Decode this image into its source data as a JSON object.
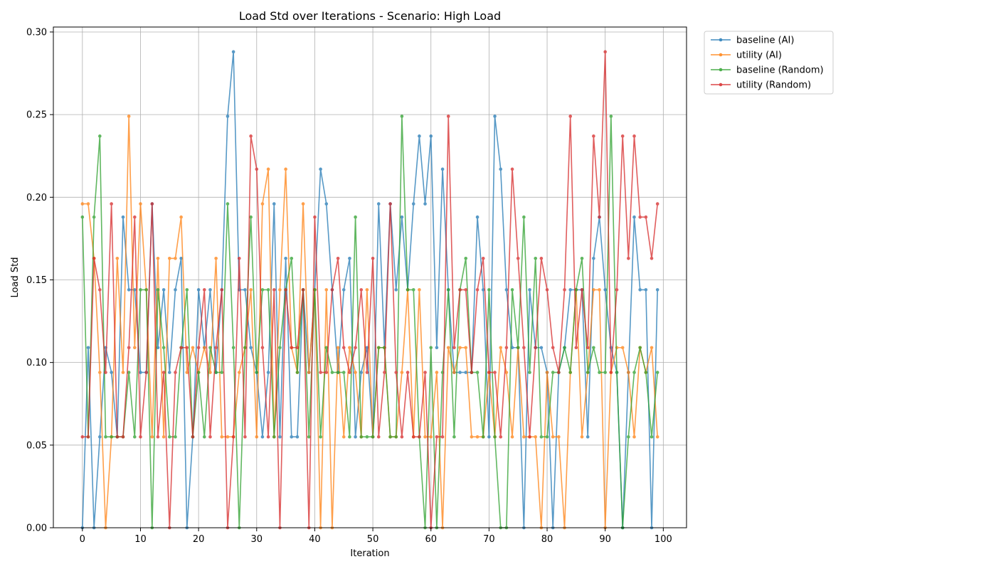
{
  "chart_data": {
    "type": "line",
    "title": "Load Std over Iterations - Scenario: High Load",
    "xlabel": "Iteration",
    "ylabel": "Load Std",
    "xlim": [
      -5,
      104
    ],
    "ylim": [
      0,
      0.303
    ],
    "xticks": [
      0,
      10,
      20,
      30,
      40,
      50,
      60,
      70,
      80,
      90,
      100
    ],
    "yticks": [
      0.0,
      0.05,
      0.1,
      0.15,
      0.2,
      0.25,
      0.3
    ],
    "xtick_labels": [
      "0",
      "10",
      "20",
      "30",
      "40",
      "50",
      "60",
      "70",
      "80",
      "90",
      "100"
    ],
    "ytick_labels": [
      "0.00",
      "0.05",
      "0.10",
      "0.15",
      "0.20",
      "0.25",
      "0.30"
    ],
    "grid": true,
    "legend_position": "outside-top-right",
    "series": [
      {
        "name": "baseline (AI)",
        "color": "#1f77b4",
        "values": [
          0.0,
          0.109,
          0.0,
          0.055,
          0.109,
          0.094,
          0.055,
          0.188,
          0.144,
          0.144,
          0.094,
          0.094,
          0.196,
          0.109,
          0.144,
          0.094,
          0.144,
          0.163,
          0.0,
          0.055,
          0.144,
          0.109,
          0.144,
          0.094,
          0.144,
          0.249,
          0.288,
          0.144,
          0.144,
          0.109,
          0.094,
          0.055,
          0.094,
          0.196,
          0.055,
          0.163,
          0.055,
          0.055,
          0.144,
          0.094,
          0.144,
          0.217,
          0.196,
          0.144,
          0.094,
          0.144,
          0.163,
          0.055,
          0.094,
          0.109,
          0.055,
          0.196,
          0.109,
          0.196,
          0.144,
          0.188,
          0.144,
          0.196,
          0.237,
          0.196,
          0.237,
          0.109,
          0.217,
          0.144,
          0.094,
          0.094,
          0.094,
          0.094,
          0.188,
          0.144,
          0.055,
          0.249,
          0.217,
          0.144,
          0.109,
          0.109,
          0.0,
          0.144,
          0.109,
          0.109,
          0.094,
          0.0,
          0.094,
          0.109,
          0.144,
          0.144,
          0.144,
          0.055,
          0.163,
          0.188,
          0.144,
          0.109,
          0.094,
          0.0,
          0.094,
          0.188,
          0.144,
          0.144,
          0.0,
          0.144
        ]
      },
      {
        "name": "utility (AI)",
        "color": "#ff7f0e",
        "values": [
          0.196,
          0.196,
          0.163,
          0.094,
          0.0,
          0.055,
          0.163,
          0.094,
          0.249,
          0.109,
          0.196,
          0.144,
          0.055,
          0.163,
          0.055,
          0.163,
          0.163,
          0.188,
          0.094,
          0.109,
          0.094,
          0.109,
          0.094,
          0.163,
          0.055,
          0.055,
          0.055,
          0.094,
          0.109,
          0.144,
          0.055,
          0.196,
          0.217,
          0.055,
          0.144,
          0.217,
          0.109,
          0.094,
          0.196,
          0.094,
          0.144,
          0.0,
          0.144,
          0.0,
          0.109,
          0.055,
          0.109,
          0.094,
          0.055,
          0.144,
          0.055,
          0.109,
          0.109,
          0.055,
          0.055,
          0.094,
          0.144,
          0.055,
          0.144,
          0.055,
          0.055,
          0.094,
          0.0,
          0.109,
          0.094,
          0.109,
          0.109,
          0.055,
          0.055,
          0.055,
          0.094,
          0.055,
          0.109,
          0.094,
          0.055,
          0.109,
          0.055,
          0.055,
          0.055,
          0.0,
          0.094,
          0.055,
          0.055,
          0.0,
          0.094,
          0.144,
          0.055,
          0.094,
          0.144,
          0.144,
          0.0,
          0.094,
          0.109,
          0.109,
          0.094,
          0.055,
          0.109,
          0.094,
          0.109,
          0.055
        ]
      },
      {
        "name": "baseline (Random)",
        "color": "#2ca02c",
        "values": [
          0.188,
          0.055,
          0.188,
          0.237,
          0.055,
          0.055,
          0.055,
          0.055,
          0.094,
          0.055,
          0.144,
          0.144,
          0.0,
          0.144,
          0.109,
          0.055,
          0.055,
          0.109,
          0.144,
          0.055,
          0.094,
          0.055,
          0.109,
          0.094,
          0.094,
          0.196,
          0.109,
          0.0,
          0.109,
          0.188,
          0.094,
          0.144,
          0.144,
          0.055,
          0.109,
          0.144,
          0.163,
          0.094,
          0.144,
          0.055,
          0.144,
          0.055,
          0.109,
          0.094,
          0.094,
          0.094,
          0.055,
          0.188,
          0.055,
          0.055,
          0.055,
          0.109,
          0.109,
          0.055,
          0.055,
          0.249,
          0.144,
          0.144,
          0.055,
          0.0,
          0.109,
          0.0,
          0.094,
          0.144,
          0.055,
          0.144,
          0.163,
          0.094,
          0.094,
          0.055,
          0.144,
          0.055,
          0.0,
          0.0,
          0.144,
          0.109,
          0.188,
          0.094,
          0.163,
          0.055,
          0.055,
          0.094,
          0.094,
          0.109,
          0.094,
          0.144,
          0.163,
          0.094,
          0.109,
          0.094,
          0.094,
          0.249,
          0.094,
          0.0,
          0.055,
          0.094,
          0.109,
          0.094,
          0.055,
          0.094
        ]
      },
      {
        "name": "utility (Random)",
        "color": "#d62728",
        "values": [
          0.055,
          0.055,
          0.163,
          0.144,
          0.094,
          0.196,
          0.055,
          0.055,
          0.109,
          0.188,
          0.055,
          0.094,
          0.196,
          0.055,
          0.094,
          0.0,
          0.094,
          0.109,
          0.109,
          0.055,
          0.109,
          0.144,
          0.055,
          0.109,
          0.144,
          0.0,
          0.055,
          0.163,
          0.055,
          0.237,
          0.217,
          0.109,
          0.055,
          0.144,
          0.0,
          0.144,
          0.109,
          0.109,
          0.144,
          0.0,
          0.188,
          0.094,
          0.094,
          0.144,
          0.163,
          0.109,
          0.094,
          0.109,
          0.144,
          0.094,
          0.163,
          0.055,
          0.094,
          0.196,
          0.094,
          0.055,
          0.094,
          0.055,
          0.055,
          0.094,
          0.0,
          0.055,
          0.055,
          0.249,
          0.109,
          0.144,
          0.144,
          0.094,
          0.144,
          0.163,
          0.094,
          0.094,
          0.055,
          0.109,
          0.217,
          0.163,
          0.109,
          0.055,
          0.109,
          0.163,
          0.144,
          0.109,
          0.094,
          0.144,
          0.249,
          0.109,
          0.144,
          0.109,
          0.237,
          0.188,
          0.288,
          0.094,
          0.144,
          0.237,
          0.163,
          0.237,
          0.188,
          0.188,
          0.163,
          0.196
        ]
      }
    ]
  }
}
